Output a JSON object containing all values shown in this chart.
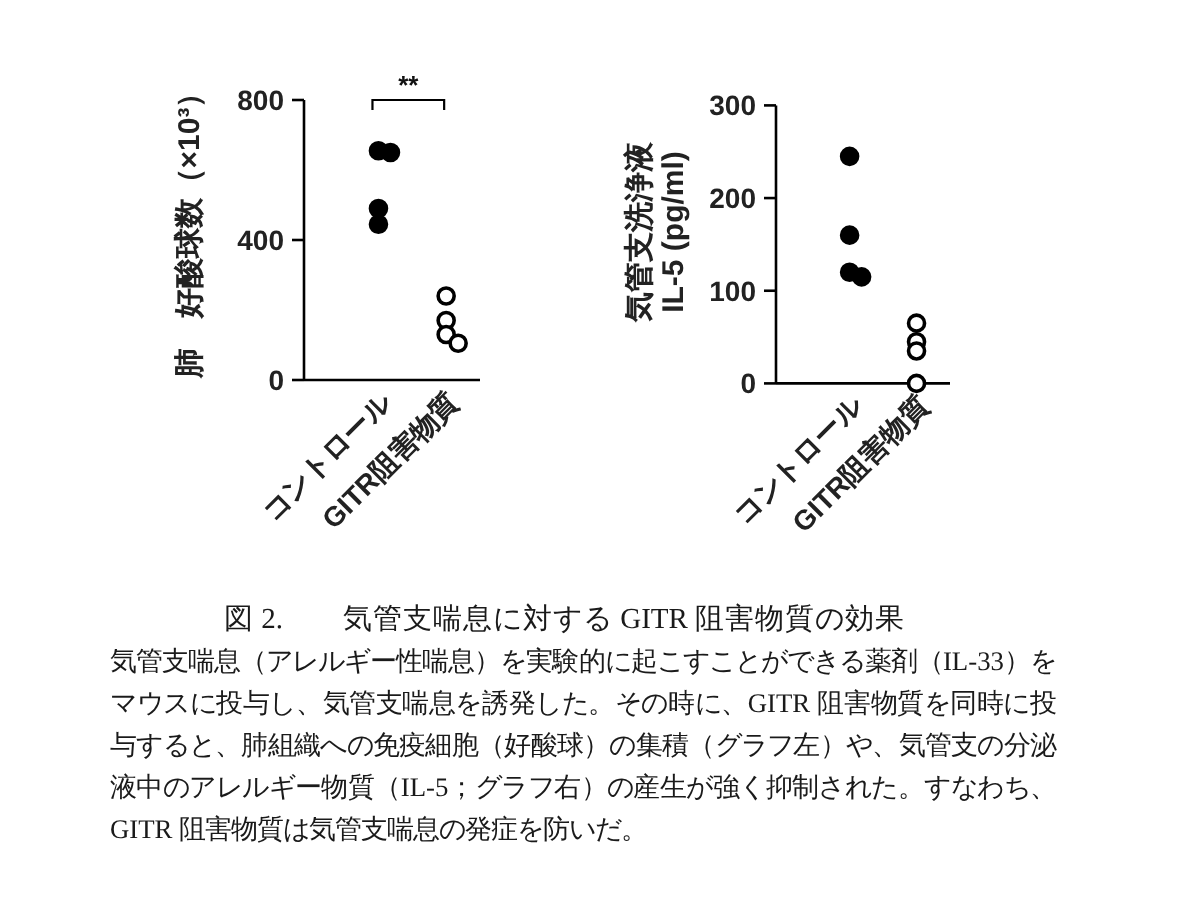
{
  "chart_data": [
    {
      "type": "scatter",
      "categories": [
        "コントロール",
        "GITR阻害物質"
      ],
      "ylabel": "肺　好酸球数（×10³）",
      "ylim": [
        0,
        800
      ],
      "yticks": [
        0,
        400,
        800
      ],
      "marker": "circle",
      "annotations": [
        "**"
      ],
      "series": [
        {
          "x": [
            "コントロール",
            "コントロール",
            "コントロール",
            "コントロール"
          ],
          "values": [
            655,
            650,
            490,
            445
          ],
          "color": "#000000"
        },
        {
          "x": [
            "GITR阻害物質",
            "GITR阻害物質",
            "GITR阻害物質",
            "GITR阻害物質"
          ],
          "values": [
            240,
            170,
            130,
            105
          ],
          "color": "#ffffff"
        }
      ]
    },
    {
      "type": "scatter",
      "categories": [
        "コントロール",
        "GITR阻害物質"
      ],
      "ylabel": "気管支洗浄液\nIL-5 (pg/ml)",
      "ylim": [
        0,
        300
      ],
      "yticks": [
        0,
        100,
        200,
        300
      ],
      "marker": "circle",
      "series": [
        {
          "x": [
            "コントロール",
            "コントロール",
            "コントロール",
            "コントロール"
          ],
          "values": [
            245,
            160,
            120,
            115
          ],
          "color": "#000000"
        },
        {
          "x": [
            "GITR阻害物質",
            "GITR阻害物質",
            "GITR阻害物質",
            "GITR阻害物質"
          ],
          "values": [
            65,
            45,
            35,
            0
          ],
          "color": "#ffffff"
        }
      ]
    },
    {
      "type": "other",
      "title": "図 2.　　気管支喘息に対する GITR 阻害物質の効果",
      "annotations": [
        "気管支喘息（アレルギー性喘息）を実験的に起こすことができる薬剤（IL-33）をマウスに投与し、気管支喘息を誘発した。その時に、GITR 阻害物質を同時に投与すると、肺組織への免疫細胞（好酸球）の集積（グラフ左）や、気管支の分泌液中のアレルギー物質（IL-5；グラフ右）の産生が強く抑制された。すなわち、GITR 阻害物質は気管支喘息の発症を防いだ。"
      ]
    }
  ]
}
